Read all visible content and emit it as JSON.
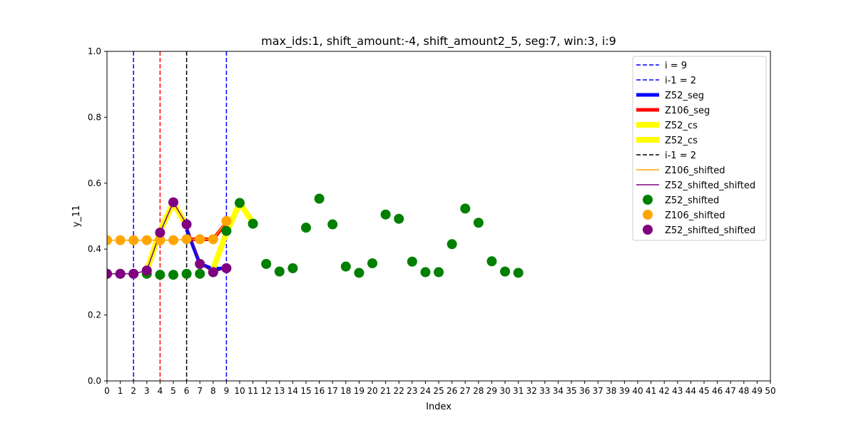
{
  "chart_data": {
    "type": "scatter",
    "title": "max_ids:1, shift_amount:-4, shift_amount2_5, seg:7, win:3, i:9",
    "xlabel": "Index",
    "ylabel": "y_11",
    "xlim": [
      0,
      50
    ],
    "ylim": [
      0,
      1
    ],
    "xticks": [
      0,
      1,
      2,
      3,
      4,
      5,
      6,
      7,
      8,
      9,
      10,
      11,
      12,
      13,
      14,
      15,
      16,
      17,
      18,
      19,
      20,
      21,
      22,
      23,
      24,
      25,
      26,
      27,
      28,
      29,
      30,
      31,
      32,
      33,
      34,
      35,
      36,
      37,
      38,
      39,
      40,
      41,
      42,
      43,
      44,
      45,
      46,
      47,
      48,
      49,
      50
    ],
    "yticks": [
      0.0,
      0.2,
      0.4,
      0.6,
      0.8,
      1.0
    ],
    "ytick_labels": [
      "0.0",
      "0.2",
      "0.4",
      "0.6",
      "0.8",
      "1.0"
    ],
    "grid": false,
    "legend_position": "top-right",
    "vlines": [
      {
        "x": 2,
        "color": "#0000ff",
        "label": "i = 9"
      },
      {
        "x": 9,
        "color": "#0000ff",
        "label": "i-1 = 2"
      },
      {
        "x": 4,
        "color": "#ff0000",
        "label": ""
      },
      {
        "x": 6,
        "color": "#000000",
        "label": "i-1 = 2"
      }
    ],
    "lines": [
      {
        "name": "Z52_seg",
        "color": "#0000ff",
        "width": 5,
        "x": [
          6,
          7,
          8,
          9
        ],
        "y": [
          0.46,
          0.355,
          0.34,
          0.342
        ]
      },
      {
        "name": "Z106_seg",
        "color": "#ff0000",
        "width": 5,
        "x": [
          6,
          7,
          8,
          9
        ],
        "y": [
          0.43,
          0.43,
          0.43,
          0.48
        ]
      },
      {
        "name": "Z52_cs",
        "color": "#ffff00",
        "width": 8,
        "x": [
          3,
          4,
          5,
          6
        ],
        "y": [
          0.335,
          0.455,
          0.54,
          0.47
        ]
      },
      {
        "name": "Z52_cs",
        "color": "#ffff00",
        "width": 8,
        "x": [
          8,
          9,
          10,
          11
        ],
        "y": [
          0.34,
          0.45,
          0.54,
          0.48
        ]
      },
      {
        "name": "Z106_shifted",
        "color": "#ffa500",
        "width": 1.5,
        "x": [
          0,
          1,
          2,
          3,
          4,
          5,
          6,
          7,
          8,
          9
        ],
        "y": [
          0.427,
          0.427,
          0.427,
          0.427,
          0.427,
          0.427,
          0.43,
          0.43,
          0.43,
          0.485
        ]
      },
      {
        "name": "Z52_shifted_shifted",
        "color": "#800080",
        "width": 1.5,
        "x": [
          0,
          1,
          2,
          3,
          4,
          5,
          6,
          7,
          8,
          9
        ],
        "y": [
          0.325,
          0.325,
          0.325,
          0.335,
          0.45,
          0.542,
          0.475,
          0.355,
          0.33,
          0.342
        ]
      }
    ],
    "series": [
      {
        "name": "Z52_shifted",
        "color": "#008000",
        "x": [
          0,
          1,
          2,
          3,
          4,
          5,
          6,
          7,
          8,
          9,
          10,
          11,
          12,
          13,
          14,
          15,
          16,
          17,
          18,
          19,
          20,
          21,
          22,
          23,
          24,
          25,
          26,
          27,
          28,
          29,
          30,
          31
        ],
        "y": [
          0.325,
          0.325,
          0.325,
          0.325,
          0.322,
          0.322,
          0.325,
          0.325,
          0.33,
          0.455,
          0.54,
          0.477,
          0.355,
          0.332,
          0.342,
          0.465,
          0.553,
          0.475,
          0.347,
          0.328,
          0.357,
          0.505,
          0.492,
          0.362,
          0.33,
          0.33,
          0.415,
          0.523,
          0.48,
          0.363,
          0.332,
          0.328
        ]
      },
      {
        "name": "Z106_shifted",
        "color": "#ffa500",
        "x": [
          0,
          1,
          2,
          3,
          4,
          5,
          6,
          7,
          8,
          9
        ],
        "y": [
          0.427,
          0.427,
          0.427,
          0.427,
          0.427,
          0.427,
          0.43,
          0.43,
          0.43,
          0.485
        ]
      },
      {
        "name": "Z52_shifted_shifted",
        "color": "#800080",
        "x": [
          0,
          1,
          2,
          3,
          4,
          5,
          6,
          7,
          8,
          9
        ],
        "y": [
          0.325,
          0.325,
          0.325,
          0.335,
          0.45,
          0.542,
          0.475,
          0.355,
          0.33,
          0.342
        ]
      }
    ],
    "legend": [
      {
        "label": "i = 9",
        "kind": "dash",
        "color": "#0000ff"
      },
      {
        "label": "i-1 = 2",
        "kind": "dash",
        "color": "#0000ff"
      },
      {
        "label": "Z52_seg",
        "kind": "thick",
        "color": "#0000ff"
      },
      {
        "label": "Z106_seg",
        "kind": "thick",
        "color": "#ff0000"
      },
      {
        "label": "Z52_cs",
        "kind": "thicker",
        "color": "#ffff00"
      },
      {
        "label": "Z52_cs",
        "kind": "thicker",
        "color": "#ffff00"
      },
      {
        "label": "i-1 = 2",
        "kind": "dash",
        "color": "#000000"
      },
      {
        "label": "Z106_shifted",
        "kind": "line",
        "color": "#ffa500"
      },
      {
        "label": "Z52_shifted_shifted",
        "kind": "line",
        "color": "#800080"
      },
      {
        "label": "Z52_shifted",
        "kind": "dot",
        "color": "#008000"
      },
      {
        "label": "Z106_shifted",
        "kind": "dot",
        "color": "#ffa500"
      },
      {
        "label": "Z52_shifted_shifted",
        "kind": "dot",
        "color": "#800080"
      }
    ]
  }
}
